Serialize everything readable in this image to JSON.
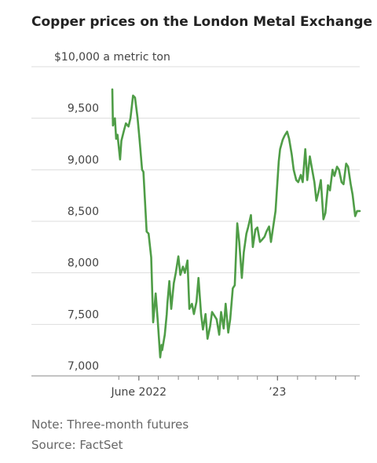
{
  "chart_data": {
    "type": "line",
    "title": "Copper prices on the London Metal Exchange",
    "ylabel": "$10,000 a metric ton",
    "xlabel": "",
    "ylim": [
      7000,
      10000
    ],
    "grid": true,
    "y_ticks": [
      {
        "value": 10000,
        "label": "$10,000 a metric ton"
      },
      {
        "value": 9500,
        "label": "9,500"
      },
      {
        "value": 9000,
        "label": "9,000"
      },
      {
        "value": 8500,
        "label": "8,500"
      },
      {
        "value": 8000,
        "label": "8,000"
      },
      {
        "value": 7500,
        "label": "7,500"
      },
      {
        "value": 7000,
        "label": "7,000"
      }
    ],
    "x_ticks": [
      {
        "date": "2022-06-01",
        "label": "June 2022"
      },
      {
        "date": "2023-01-01",
        "label": "’23"
      }
    ],
    "x_minor_ticks": [
      "2022-05-01",
      "2022-06-01",
      "2022-07-01",
      "2022-08-01",
      "2022-09-01",
      "2022-10-01",
      "2022-11-01",
      "2022-12-01",
      "2023-01-01",
      "2023-02-01",
      "2023-03-01",
      "2023-04-01",
      "2023-05-01"
    ],
    "series": [
      {
        "color": "#4f9d47",
        "x": [
          "2022-04-21",
          "2022-04-22",
          "2022-04-25",
          "2022-04-27",
          "2022-04-29",
          "2022-05-03",
          "2022-05-05",
          "2022-05-09",
          "2022-05-12",
          "2022-05-16",
          "2022-05-19",
          "2022-05-23",
          "2022-05-26",
          "2022-05-30",
          "2022-06-02",
          "2022-06-06",
          "2022-06-08",
          "2022-06-13",
          "2022-06-16",
          "2022-06-20",
          "2022-06-23",
          "2022-06-27",
          "2022-06-30",
          "2022-07-04",
          "2022-07-06",
          "2022-07-07",
          "2022-07-11",
          "2022-07-14",
          "2022-07-15",
          "2022-07-18",
          "2022-07-21",
          "2022-07-25",
          "2022-07-28",
          "2022-08-01",
          "2022-08-04",
          "2022-08-08",
          "2022-08-11",
          "2022-08-15",
          "2022-08-18",
          "2022-08-22",
          "2022-08-25",
          "2022-08-29",
          "2022-09-01",
          "2022-09-05",
          "2022-09-08",
          "2022-09-12",
          "2022-09-15",
          "2022-09-19",
          "2022-09-22",
          "2022-09-26",
          "2022-09-29",
          "2022-10-03",
          "2022-10-06",
          "2022-10-10",
          "2022-10-13",
          "2022-10-17",
          "2022-10-20",
          "2022-10-24",
          "2022-10-27",
          "2022-10-31",
          "2022-11-03",
          "2022-11-07",
          "2022-11-10",
          "2022-11-14",
          "2022-11-17",
          "2022-11-21",
          "2022-11-24",
          "2022-11-28",
          "2022-12-01",
          "2022-12-05",
          "2022-12-08",
          "2022-12-12",
          "2022-12-15",
          "2022-12-19",
          "2022-12-22",
          "2022-12-29",
          "2023-01-03",
          "2023-01-05",
          "2023-01-09",
          "2023-01-12",
          "2023-01-16",
          "2023-01-19",
          "2023-01-23",
          "2023-01-26",
          "2023-01-30",
          "2023-02-02",
          "2023-02-06",
          "2023-02-09",
          "2023-02-13",
          "2023-02-16",
          "2023-02-20",
          "2023-02-23",
          "2023-02-27",
          "2023-03-02",
          "2023-03-06",
          "2023-03-09",
          "2023-03-13",
          "2023-03-16",
          "2023-03-20",
          "2023-03-23",
          "2023-03-27",
          "2023-03-30",
          "2023-04-03",
          "2023-04-06",
          "2023-04-10",
          "2023-04-13",
          "2023-04-17",
          "2023-04-20",
          "2023-04-24",
          "2023-04-27",
          "2023-05-01",
          "2023-05-04",
          "2023-05-08"
        ],
        "values": [
          9780,
          9430,
          9500,
          9300,
          9340,
          9100,
          9280,
          9380,
          9450,
          9420,
          9500,
          9720,
          9700,
          9500,
          9300,
          9000,
          8980,
          8400,
          8380,
          8150,
          7520,
          7800,
          7550,
          7180,
          7300,
          7250,
          7400,
          7600,
          7700,
          7920,
          7650,
          7900,
          8000,
          8160,
          7980,
          8060,
          8000,
          8120,
          7650,
          7700,
          7600,
          7720,
          7950,
          7600,
          7450,
          7600,
          7360,
          7480,
          7620,
          7580,
          7550,
          7400,
          7620,
          7460,
          7700,
          7420,
          7550,
          7850,
          7880,
          8480,
          8300,
          7950,
          8200,
          8380,
          8450,
          8560,
          8250,
          8420,
          8440,
          8300,
          8320,
          8350,
          8400,
          8450,
          8300,
          8600,
          9080,
          9200,
          9290,
          9330,
          9370,
          9300,
          9150,
          9000,
          8900,
          8880,
          8950,
          8880,
          9200,
          8900,
          9130,
          9020,
          8880,
          8700,
          8800,
          8900,
          8520,
          8580,
          8850,
          8800,
          9000,
          8940,
          9030,
          9000,
          8880,
          8860,
          9060,
          9030,
          8860,
          8760,
          8550,
          8600,
          8600
        ]
      }
    ]
  },
  "footer": {
    "note": "Note: Three-month futures",
    "source": "Source: FactSet"
  }
}
